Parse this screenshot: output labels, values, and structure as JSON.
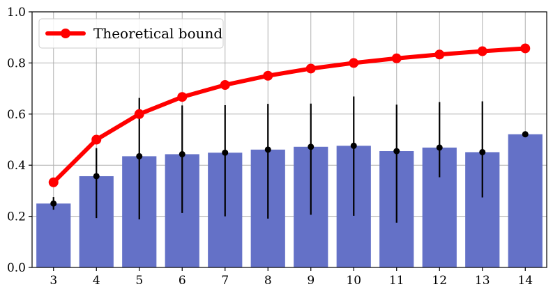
{
  "chart_data": {
    "type": "bar",
    "x": [
      3,
      4,
      5,
      6,
      7,
      8,
      9,
      10,
      11,
      12,
      13,
      14
    ],
    "categories": [
      "3",
      "4",
      "5",
      "6",
      "7",
      "8",
      "9",
      "10",
      "11",
      "12",
      "13",
      "14"
    ],
    "series": [
      {
        "kind": "bar",
        "values": [
          0.25,
          0.357,
          0.435,
          0.443,
          0.449,
          0.461,
          0.472,
          0.476,
          0.455,
          0.469,
          0.451,
          0.521
        ],
        "error_low": [
          0.226,
          0.193,
          0.188,
          0.213,
          0.2,
          0.191,
          0.206,
          0.202,
          0.175,
          0.353,
          0.274,
          0.521
        ],
        "error_high": [
          0.275,
          0.467,
          0.663,
          0.634,
          0.635,
          0.64,
          0.641,
          0.669,
          0.637,
          0.647,
          0.65,
          0.521
        ],
        "color": "#6471c7"
      },
      {
        "kind": "line",
        "name": "Theoretical bound",
        "values": [
          0.333,
          0.5,
          0.6,
          0.667,
          0.714,
          0.75,
          0.778,
          0.8,
          0.818,
          0.833,
          0.846,
          0.857
        ],
        "color": "#ff0000"
      }
    ],
    "ylim": [
      0,
      1.0
    ],
    "yticks": [
      "0.0",
      "0.2",
      "0.4",
      "0.6",
      "0.8",
      "1.0"
    ],
    "title": "",
    "xlabel": "",
    "ylabel": "",
    "grid": true,
    "legend": {
      "placement": "top-left",
      "entries": [
        "Theoretical bound"
      ]
    }
  }
}
